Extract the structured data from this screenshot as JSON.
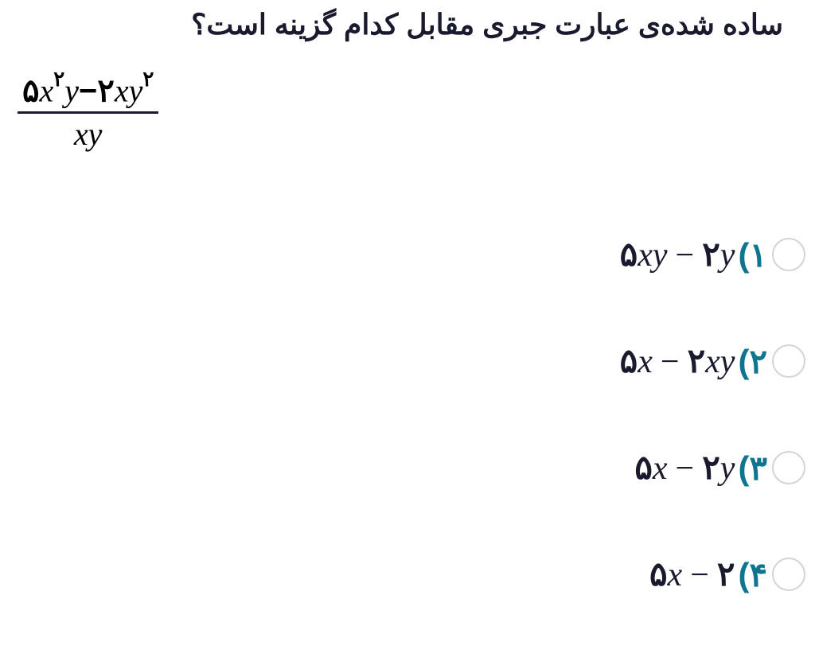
{
  "question": {
    "title": "ساده شده‌ی عبارت جبری مقابل کدام گزینه است؟",
    "title_color": "#1a1a2e",
    "title_fontsize": 36
  },
  "expression": {
    "numerator_parts": {
      "coef1": "۵",
      "var1": "x",
      "exp1": "۲",
      "var2": "y",
      "op": "−",
      "coef2": "۲",
      "var3": "x",
      "var4": "y",
      "exp2": "۲"
    },
    "denominator_parts": {
      "var1": "x",
      "var2": "y"
    },
    "line_color": "#1a1a2e"
  },
  "options": [
    {
      "number": "۱)",
      "expr": {
        "c1": "۵",
        "t1": "xy",
        "op": "−",
        "c2": "۲",
        "t2": "y"
      }
    },
    {
      "number": "۲)",
      "expr": {
        "c1": "۵",
        "t1": "x",
        "op": "−",
        "c2": "۲",
        "t2": "xy"
      }
    },
    {
      "number": "۳)",
      "expr": {
        "c1": "۵",
        "t1": "x",
        "op": "−",
        "c2": "۲",
        "t2": "y"
      }
    },
    {
      "number": "۴)",
      "expr": {
        "c1": "۵",
        "t1": "x",
        "op": "−",
        "c2": "۲",
        "t2": ""
      }
    }
  ],
  "styling": {
    "option_number_color": "#0e7490",
    "radio_border_color": "#d1d5db",
    "text_color": "#1a1a2e",
    "background": "#ffffff"
  }
}
